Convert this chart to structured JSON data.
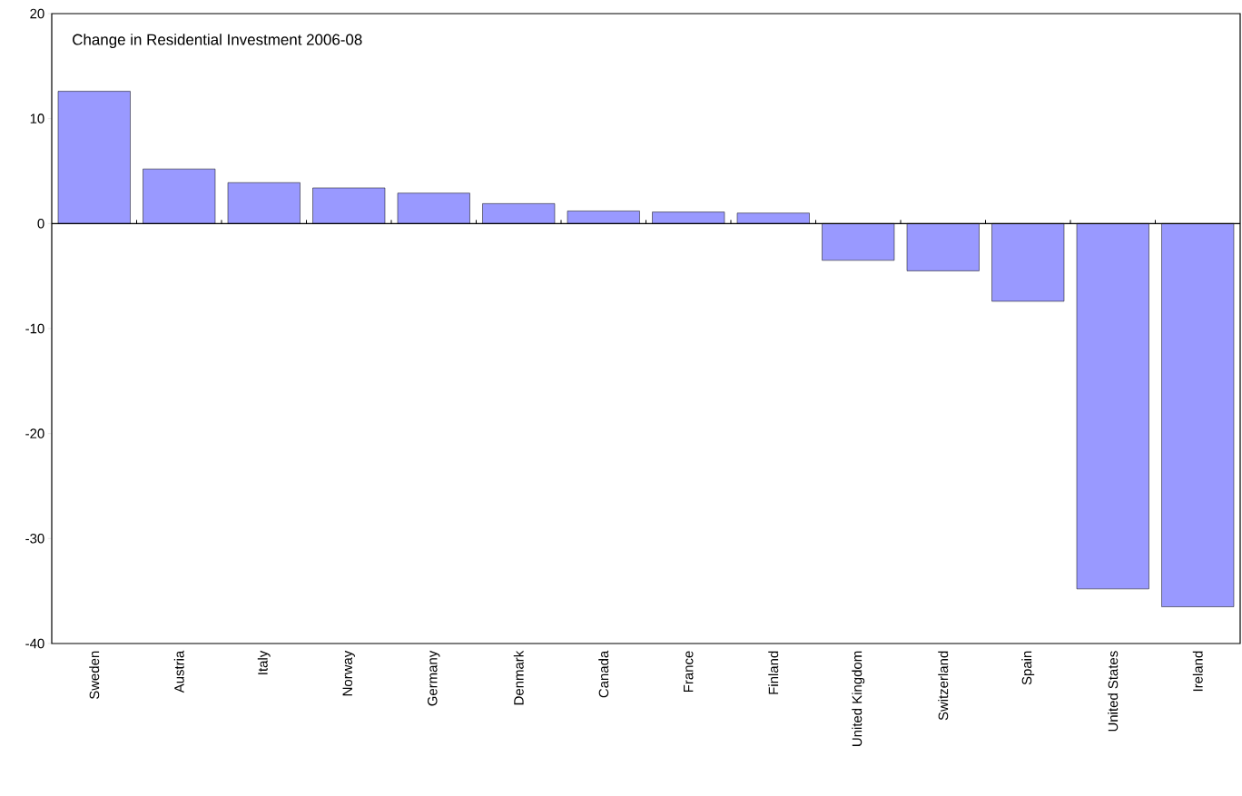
{
  "chart_data": {
    "type": "bar",
    "title": "Change in Residential Investment 2006-08",
    "categories": [
      "Sweden",
      "Austria",
      "Italy",
      "Norway",
      "Germany",
      "Denmark",
      "Canada",
      "France",
      "Finland",
      "United Kingdom",
      "Switzerland",
      "Spain",
      "United States",
      "Ireland"
    ],
    "values": [
      12.6,
      5.2,
      3.9,
      3.4,
      2.9,
      1.9,
      1.2,
      1.1,
      1.0,
      -3.5,
      -4.5,
      -7.4,
      -34.8,
      -36.5
    ],
    "color": "#9999ff",
    "ylim": [
      -40,
      20
    ],
    "yticks": [
      -40,
      -30,
      -20,
      -10,
      0,
      10,
      20
    ],
    "ref_lines": [
      {
        "axis": "y",
        "value": 0,
        "color": "#000000"
      }
    ]
  }
}
